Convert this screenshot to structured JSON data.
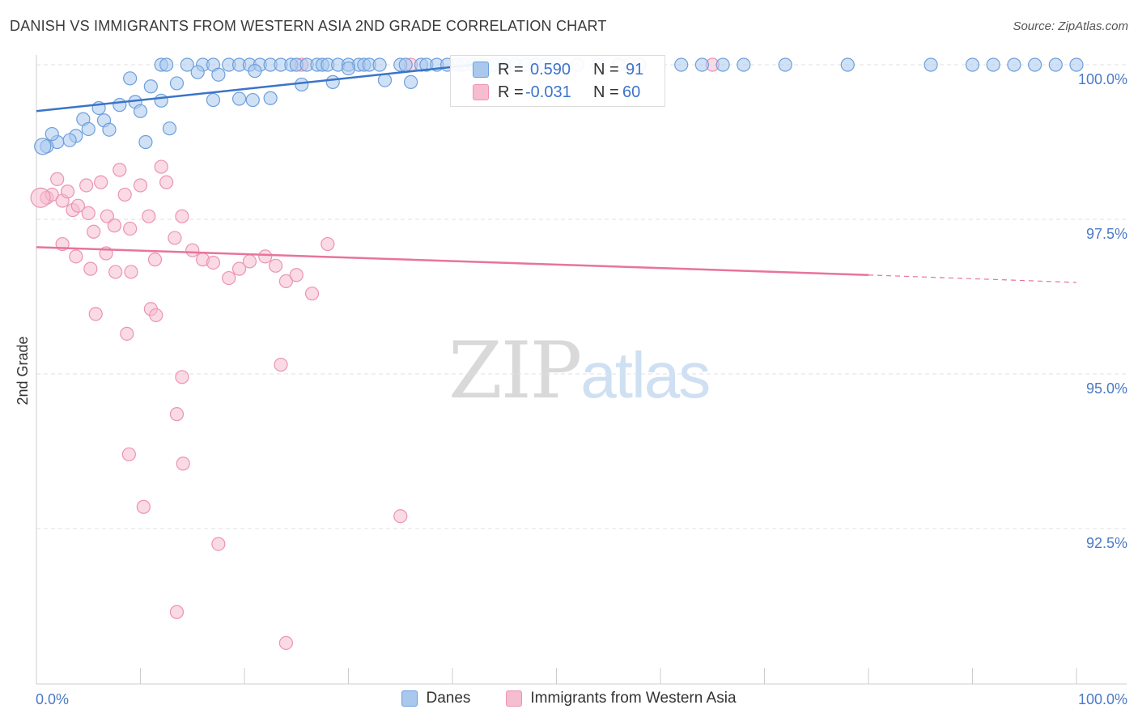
{
  "title": "DANISH VS IMMIGRANTS FROM WESTERN ASIA 2ND GRADE CORRELATION CHART",
  "source": "Source: ZipAtlas.com",
  "watermark": {
    "zip": "ZIP",
    "atlas": "atlas"
  },
  "colors": {
    "blue_fill": "#aac8ee",
    "blue_stroke": "#6c9fdb",
    "blue_line": "#3a74c9",
    "pink_fill": "#f6bcd0",
    "pink_stroke": "#ec93b2",
    "pink_line": "#e8739e",
    "axis_text": "#4a7ac8",
    "grid": "#e2e2e2"
  },
  "stats": {
    "danes": {
      "r_label": "R =",
      "r_value": "0.590",
      "n_label": "N =",
      "n_value": "91"
    },
    "immigrants": {
      "r_label": "R =",
      "r_value": "-0.031",
      "n_label": "N =",
      "n_value": "60"
    }
  },
  "legend": {
    "danes": "Danes",
    "immigrants": "Immigrants from Western Asia"
  },
  "chart_data": {
    "type": "scatter",
    "title": "DANISH VS IMMIGRANTS FROM WESTERN ASIA 2ND GRADE CORRELATION CHART",
    "xlabel": "",
    "ylabel": "2nd Grade",
    "xlim": [
      0,
      100
    ],
    "ylim": [
      90.0,
      100.4
    ],
    "x_tick_labels": [
      {
        "value": 0,
        "label": "0.0%"
      },
      {
        "value": 100,
        "label": "100.0%"
      }
    ],
    "y_ticks": [
      {
        "value": 100.0,
        "label": "100.0%"
      },
      {
        "value": 97.5,
        "label": "97.5%"
      },
      {
        "value": 95.0,
        "label": "95.0%"
      },
      {
        "value": 92.5,
        "label": "92.5%"
      }
    ],
    "grid": true,
    "legend_position": "bottom-center",
    "series": [
      {
        "name": "Danes",
        "trend": {
          "x": [
            0,
            42
          ],
          "y": [
            99.25,
            100.0
          ]
        },
        "points": [
          [
            12,
            100
          ],
          [
            12.5,
            100
          ],
          [
            14.5,
            100
          ],
          [
            16,
            100
          ],
          [
            17,
            100
          ],
          [
            18.5,
            100
          ],
          [
            19.5,
            100
          ],
          [
            20.5,
            100
          ],
          [
            21.5,
            100
          ],
          [
            22.5,
            100
          ],
          [
            23.5,
            100
          ],
          [
            24.5,
            100
          ],
          [
            25,
            100
          ],
          [
            26,
            100
          ],
          [
            27,
            100
          ],
          [
            27.5,
            100
          ],
          [
            28,
            100
          ],
          [
            29,
            100
          ],
          [
            30,
            100
          ],
          [
            31,
            100
          ],
          [
            31.5,
            100
          ],
          [
            32,
            100
          ],
          [
            33,
            100
          ],
          [
            35,
            100
          ],
          [
            35.5,
            100
          ],
          [
            37,
            100
          ],
          [
            37.5,
            100
          ],
          [
            38.5,
            100
          ],
          [
            39.5,
            100
          ],
          [
            40.5,
            100
          ],
          [
            41,
            100
          ],
          [
            42,
            100
          ],
          [
            42.5,
            100
          ],
          [
            43,
            100
          ],
          [
            44,
            100
          ],
          [
            45,
            100
          ],
          [
            46,
            100
          ],
          [
            47,
            100
          ],
          [
            48,
            100
          ],
          [
            49,
            100
          ],
          [
            50,
            100
          ],
          [
            52,
            100
          ],
          [
            54,
            100
          ],
          [
            56,
            100
          ],
          [
            58,
            100
          ],
          [
            62,
            100
          ],
          [
            64,
            100
          ],
          [
            66,
            100
          ],
          [
            68,
            100
          ],
          [
            72,
            100
          ],
          [
            78,
            100
          ],
          [
            86,
            100
          ],
          [
            90,
            100
          ],
          [
            92,
            100
          ],
          [
            94,
            100
          ],
          [
            96,
            100
          ],
          [
            98,
            100
          ],
          [
            100,
            100
          ],
          [
            9,
            99.78
          ],
          [
            11,
            99.65
          ],
          [
            13.5,
            99.7
          ],
          [
            15.5,
            99.88
          ],
          [
            17.5,
            99.84
          ],
          [
            21,
            99.9
          ],
          [
            25.5,
            99.68
          ],
          [
            28.5,
            99.72
          ],
          [
            30,
            99.94
          ],
          [
            33.5,
            99.75
          ],
          [
            36,
            99.72
          ],
          [
            19.5,
            99.45
          ],
          [
            12,
            99.42
          ],
          [
            22.5,
            99.46
          ],
          [
            20.8,
            99.43
          ],
          [
            17,
            99.43
          ],
          [
            9.5,
            99.4
          ],
          [
            10,
            99.25
          ],
          [
            8,
            99.35
          ],
          [
            6,
            99.3
          ],
          [
            4.5,
            99.12
          ],
          [
            5,
            98.96
          ],
          [
            6.5,
            99.1
          ],
          [
            7,
            98.95
          ],
          [
            3.8,
            98.85
          ],
          [
            3.2,
            98.78
          ],
          [
            2,
            98.75
          ],
          [
            1.5,
            98.88
          ],
          [
            1,
            98.68
          ],
          [
            10.5,
            98.75
          ],
          [
            12.8,
            98.97
          ]
        ]
      },
      {
        "name": "Immigrants from Western Asia",
        "trend": {
          "x": [
            0,
            80
          ],
          "y": [
            97.05,
            96.6
          ],
          "dashed_to": [
            100,
            96.48
          ]
        },
        "points": [
          [
            1,
            97.85
          ],
          [
            1.5,
            97.9
          ],
          [
            2,
            98.15
          ],
          [
            2.5,
            97.8
          ],
          [
            3,
            97.95
          ],
          [
            3.5,
            97.65
          ],
          [
            4,
            97.72
          ],
          [
            4.8,
            98.05
          ],
          [
            5,
            97.6
          ],
          [
            5.5,
            97.3
          ],
          [
            6.2,
            98.1
          ],
          [
            6.8,
            97.55
          ],
          [
            7.5,
            97.4
          ],
          [
            8,
            98.3
          ],
          [
            8.5,
            97.9
          ],
          [
            9,
            97.35
          ],
          [
            10,
            98.05
          ],
          [
            10.8,
            97.55
          ],
          [
            12,
            98.35
          ],
          [
            12.5,
            98.1
          ],
          [
            14,
            97.55
          ],
          [
            15,
            97.0
          ],
          [
            16,
            96.85
          ],
          [
            17,
            96.8
          ],
          [
            18.5,
            96.55
          ],
          [
            19.5,
            96.7
          ],
          [
            20.5,
            96.82
          ],
          [
            22,
            96.9
          ],
          [
            23,
            96.75
          ],
          [
            24,
            96.5
          ],
          [
            25,
            96.6
          ],
          [
            26.5,
            96.3
          ],
          [
            28,
            97.1
          ],
          [
            13.3,
            97.2
          ],
          [
            11.4,
            96.85
          ],
          [
            2.5,
            97.1
          ],
          [
            3.8,
            96.9
          ],
          [
            5.2,
            96.7
          ],
          [
            6.7,
            96.95
          ],
          [
            7.6,
            96.65
          ],
          [
            9.1,
            96.65
          ],
          [
            5.7,
            95.97
          ],
          [
            11,
            96.05
          ],
          [
            11.5,
            95.95
          ],
          [
            8.7,
            95.65
          ],
          [
            23.5,
            95.15
          ],
          [
            14,
            94.95
          ],
          [
            13.5,
            94.35
          ],
          [
            8.9,
            93.7
          ],
          [
            14.1,
            93.55
          ],
          [
            10.3,
            92.85
          ],
          [
            35,
            92.7
          ],
          [
            17.5,
            92.25
          ],
          [
            13.5,
            91.15
          ],
          [
            24,
            90.65
          ],
          [
            36,
            100
          ],
          [
            40.5,
            100
          ],
          [
            57,
            100
          ],
          [
            65,
            100
          ],
          [
            25.5,
            100
          ]
        ]
      }
    ]
  }
}
